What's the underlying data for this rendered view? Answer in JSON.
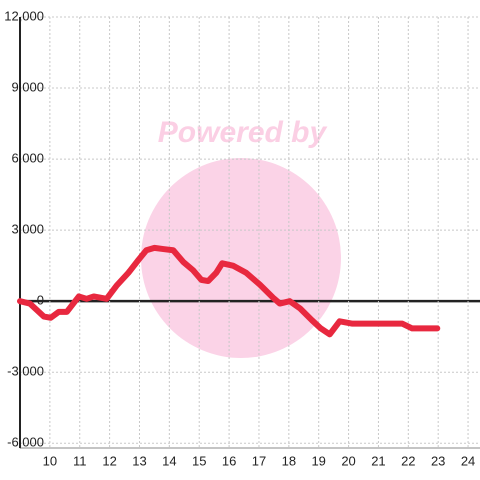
{
  "chart_data": {
    "type": "line",
    "watermark": "Powered by",
    "x": [
      9.0,
      9.33,
      9.8,
      10.03,
      10.3,
      10.57,
      10.97,
      11.23,
      11.47,
      11.9,
      12.23,
      12.63,
      12.97,
      13.23,
      13.5,
      13.8,
      14.13,
      14.47,
      14.8,
      15.07,
      15.3,
      15.57,
      15.77,
      16.13,
      16.57,
      17.03,
      17.47,
      17.7,
      18.03,
      18.37,
      18.77,
      19.07,
      19.37,
      19.7,
      20.13,
      20.8,
      21.8,
      22.13,
      22.97
    ],
    "series": [
      {
        "color": "#e8283f",
        "values": [
          0,
          -100,
          -650,
          -700,
          -450,
          -450,
          200,
          100,
          200,
          100,
          650,
          1200,
          1750,
          2150,
          2250,
          2200,
          2150,
          1650,
          1300,
          900,
          850,
          1200,
          1600,
          1500,
          1200,
          700,
          150,
          -100,
          0,
          -300,
          -800,
          -1150,
          -1400,
          -850,
          -950,
          -950,
          -950,
          -1150,
          -1150
        ]
      }
    ],
    "xlim": [
      9,
      24.4
    ],
    "xticks": [
      10,
      11,
      12,
      13,
      14,
      15,
      16,
      17,
      18,
      19,
      20,
      21,
      22,
      23,
      24
    ],
    "ylim": [
      -6200,
      12000
    ],
    "yticks": [
      {
        "value": -6000,
        "label": "-6,000"
      },
      {
        "value": -3000,
        "label": "-3,000"
      },
      0,
      {
        "value": 3000,
        "label": "3,000"
      },
      {
        "value": 6000,
        "label": "6,000"
      },
      {
        "value": 9000,
        "label": "9,000"
      },
      {
        "value": 12000,
        "label": "12,000"
      }
    ],
    "grid": true
  }
}
